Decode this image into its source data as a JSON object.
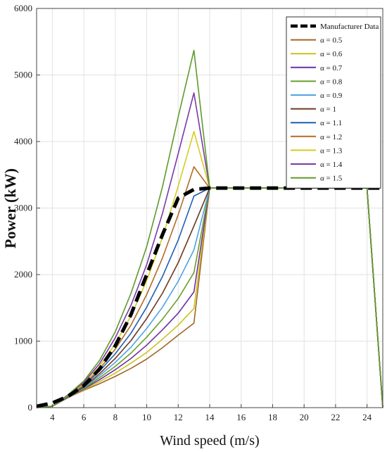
{
  "chart_data": {
    "type": "line",
    "title": "",
    "xlabel": "Wind speed (m/s)",
    "ylabel": "Power (kW)",
    "xlim": [
      3,
      25
    ],
    "ylim": [
      0,
      6000
    ],
    "xticks": [
      4,
      6,
      8,
      10,
      12,
      14,
      16,
      18,
      20,
      22,
      24
    ],
    "yticks": [
      0,
      1000,
      2000,
      3000,
      4000,
      5000,
      6000
    ],
    "grid": true,
    "legend_position": "top-right",
    "x": [
      3,
      4,
      5,
      6,
      7,
      8,
      9,
      10,
      11,
      12,
      13,
      14,
      15,
      16,
      17,
      18,
      19,
      20,
      21,
      22,
      23,
      24,
      25
    ],
    "series": [
      {
        "name": "Manufacturer Data",
        "style": "dashed",
        "color": "#000000",
        "values": [
          20,
          70,
          170,
          330,
          580,
          930,
          1400,
          2000,
          2600,
          3150,
          3280,
          3300,
          3300,
          3300,
          3300,
          3300,
          3300,
          3300,
          3300,
          3300,
          3300,
          3300,
          3300
        ]
      },
      {
        "name": "α = 0.5",
        "color": "#a0662a",
        "values": [
          0,
          20,
          150,
          260,
          360,
          470,
          590,
          730,
          900,
          1090,
          1270,
          3300,
          3300,
          3300,
          3300,
          3300,
          3300,
          3300,
          3300,
          3300,
          3300,
          3300,
          0
        ]
      },
      {
        "name": "α = 0.6",
        "color": "#c9c21e",
        "values": [
          0,
          20,
          150,
          270,
          390,
          520,
          670,
          830,
          1030,
          1240,
          1490,
          3300,
          3300,
          3300,
          3300,
          3300,
          3300,
          3300,
          3300,
          3300,
          3300,
          3300,
          0
        ]
      },
      {
        "name": "α = 0.7",
        "color": "#6f2f9e",
        "values": [
          0,
          20,
          155,
          280,
          420,
          570,
          740,
          940,
          1170,
          1420,
          1740,
          3300,
          3300,
          3300,
          3300,
          3300,
          3300,
          3300,
          3300,
          3300,
          3300,
          3300,
          0
        ]
      },
      {
        "name": "α = 0.8",
        "color": "#6a9e2b",
        "values": [
          0,
          20,
          160,
          290,
          450,
          620,
          820,
          1060,
          1330,
          1640,
          2030,
          3300,
          3300,
          3300,
          3300,
          3300,
          3300,
          3300,
          3300,
          3300,
          3300,
          3300,
          0
        ]
      },
      {
        "name": "α = 0.9",
        "color": "#4fa3e3",
        "values": [
          0,
          20,
          165,
          300,
          480,
          680,
          910,
          1190,
          1510,
          1900,
          2370,
          3300,
          3300,
          3300,
          3300,
          3300,
          3300,
          3300,
          3300,
          3300,
          3300,
          3300,
          0
        ]
      },
      {
        "name": "α = 1",
        "color": "#6e3a20",
        "values": [
          0,
          20,
          170,
          310,
          510,
          740,
          1010,
          1340,
          1720,
          2180,
          2730,
          3300,
          3300,
          3300,
          3300,
          3300,
          3300,
          3300,
          3300,
          3300,
          3300,
          3300,
          0
        ]
      },
      {
        "name": "α = 1.1",
        "color": "#1f5fb4",
        "values": [
          0,
          20,
          175,
          330,
          550,
          810,
          1120,
          1510,
          1970,
          2520,
          3180,
          3300,
          3300,
          3300,
          3300,
          3300,
          3300,
          3300,
          3300,
          3300,
          3300,
          3300,
          0
        ]
      },
      {
        "name": "α = 1.2",
        "color": "#b36a25",
        "values": [
          0,
          20,
          180,
          340,
          580,
          880,
          1240,
          1700,
          2250,
          2900,
          3620,
          3300,
          3300,
          3300,
          3300,
          3300,
          3300,
          3300,
          3300,
          3300,
          3300,
          3300,
          0
        ]
      },
      {
        "name": "α = 1.3",
        "color": "#d6cc20",
        "values": [
          0,
          20,
          185,
          360,
          620,
          960,
          1380,
          1910,
          2560,
          3330,
          4150,
          3300,
          3300,
          3300,
          3300,
          3300,
          3300,
          3300,
          3300,
          3300,
          3300,
          3300,
          0
        ]
      },
      {
        "name": "α = 1.4",
        "color": "#7a3aa8",
        "values": [
          0,
          20,
          190,
          380,
          660,
          1050,
          1540,
          2150,
          2920,
          3820,
          4730,
          3300,
          3300,
          3300,
          3300,
          3300,
          3300,
          3300,
          3300,
          3300,
          3300,
          3300,
          0
        ]
      },
      {
        "name": "α = 1.5",
        "color": "#5e9a2a",
        "values": [
          0,
          20,
          195,
          400,
          710,
          1140,
          1720,
          2420,
          3320,
          4370,
          5370,
          3300,
          3300,
          3300,
          3300,
          3300,
          3300,
          3300,
          3300,
          3300,
          3300,
          3300,
          0
        ]
      }
    ]
  }
}
